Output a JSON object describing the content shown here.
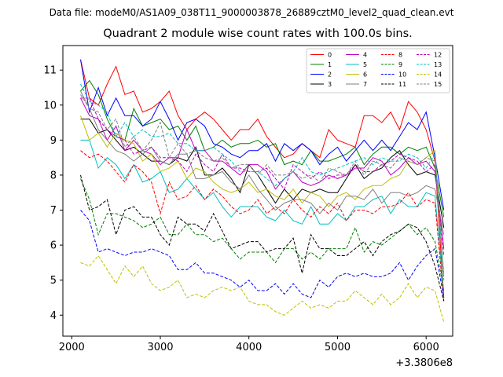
{
  "chart_data": {
    "type": "line",
    "suptitle": "Data file: modeM0/AS1A09_038T11_9000003878_26889cztM0_level2_quad_clean.evt",
    "title": "Quadrant 2 module wise count rates with 100.0s bins.",
    "xlabel": "",
    "ylabel": "",
    "x_offset_label": "+3.3806e8",
    "xlim": [
      1900,
      6300
    ],
    "ylim": [
      3.4,
      11.7
    ],
    "xticks": [
      2000,
      3000,
      4000,
      5000,
      6000
    ],
    "yticks": [
      4,
      5,
      6,
      7,
      8,
      9,
      10,
      11
    ],
    "grid": false,
    "legend_position": "top-right",
    "x": [
      2100,
      2200,
      2300,
      2400,
      2500,
      2600,
      2700,
      2800,
      2900,
      3000,
      3100,
      3200,
      3300,
      3400,
      3500,
      3600,
      3700,
      3800,
      3900,
      4000,
      4100,
      4200,
      4300,
      4400,
      4500,
      4600,
      4700,
      4800,
      4900,
      5000,
      5100,
      5200,
      5300,
      5400,
      5500,
      5600,
      5700,
      5800,
      5900,
      6000,
      6100,
      6200
    ],
    "series": [
      {
        "name": "0",
        "color": "#ff0000",
        "style": "solid",
        "values": [
          11.3,
          10.2,
          10.0,
          10.6,
          11.1,
          10.3,
          10.4,
          9.8,
          9.9,
          10.1,
          10.4,
          9.7,
          9.3,
          9.6,
          9.8,
          9.6,
          9.3,
          9.0,
          9.3,
          9.3,
          9.6,
          9.1,
          8.8,
          8.5,
          8.6,
          8.9,
          8.7,
          8.5,
          9.3,
          9.0,
          8.9,
          8.8,
          9.7,
          9.7,
          9.5,
          9.8,
          9.3,
          10.1,
          9.8,
          9.3,
          8.4,
          4.5
        ]
      },
      {
        "name": "1",
        "color": "#008000",
        "style": "solid",
        "values": [
          10.4,
          10.7,
          10.3,
          9.6,
          9.1,
          9.0,
          9.9,
          9.4,
          9.5,
          9.6,
          9.3,
          9.4,
          9.0,
          9.4,
          8.7,
          8.8,
          9.0,
          8.8,
          8.9,
          8.9,
          9.0,
          8.8,
          8.9,
          8.3,
          8.4,
          8.3,
          8.7,
          8.4,
          8.4,
          8.5,
          8.6,
          8.8,
          8.3,
          8.6,
          8.8,
          8.8,
          8.6,
          8.8,
          8.7,
          8.8,
          8.2,
          6.8
        ]
      },
      {
        "name": "2",
        "color": "#0000ff",
        "style": "solid",
        "values": [
          11.3,
          9.8,
          10.5,
          9.7,
          10.2,
          9.7,
          9.7,
          9.4,
          9.6,
          10.1,
          9.6,
          9.0,
          9.5,
          9.6,
          9.4,
          8.9,
          8.8,
          8.6,
          8.5,
          8.7,
          8.7,
          8.9,
          8.4,
          8.9,
          8.7,
          8.9,
          8.7,
          8.3,
          8.6,
          8.8,
          8.4,
          8.7,
          9.0,
          8.7,
          9.0,
          8.7,
          9.1,
          9.5,
          9.3,
          9.8,
          8.5,
          7.0
        ]
      },
      {
        "name": "3",
        "color": "#000000",
        "style": "solid",
        "values": [
          9.6,
          9.6,
          9.2,
          9.3,
          9.0,
          8.7,
          8.8,
          8.6,
          8.4,
          8.4,
          8.3,
          8.5,
          8.4,
          8.8,
          8.0,
          8.0,
          8.2,
          7.9,
          7.5,
          8.3,
          8.0,
          7.6,
          7.2,
          7.6,
          7.3,
          7.6,
          7.5,
          7.6,
          7.5,
          7.5,
          7.9,
          8.3,
          7.9,
          8.1,
          8.2,
          8.5,
          8.7,
          8.3,
          8.0,
          8.1,
          8.0,
          6.5
        ]
      },
      {
        "name": "4",
        "color": "#c000c0",
        "style": "solid",
        "values": [
          10.2,
          9.7,
          9.6,
          9.0,
          9.4,
          8.7,
          9.0,
          8.7,
          8.6,
          8.3,
          8.5,
          8.5,
          9.3,
          8.7,
          8.7,
          8.4,
          8.4,
          8.2,
          8.0,
          8.3,
          8.3,
          8.1,
          7.6,
          7.9,
          8.1,
          7.8,
          7.7,
          7.8,
          8.0,
          7.9,
          8.0,
          8.2,
          8.2,
          8.5,
          8.4,
          8.0,
          8.2,
          8.5,
          8.3,
          8.4,
          8.1,
          5.9
        ]
      },
      {
        "name": "5",
        "color": "#00bfbf",
        "style": "solid",
        "values": [
          9.0,
          9.0,
          8.2,
          8.5,
          8.3,
          7.9,
          8.3,
          7.8,
          7.9,
          8.1,
          7.5,
          7.6,
          7.9,
          7.6,
          7.3,
          7.5,
          7.1,
          6.8,
          7.1,
          7.1,
          7.1,
          6.8,
          6.7,
          7.0,
          6.7,
          6.6,
          7.1,
          6.6,
          6.6,
          6.9,
          6.7,
          7.1,
          7.1,
          7.3,
          7.4,
          6.9,
          7.3,
          7.1,
          7.1,
          7.5,
          7.4,
          4.6
        ]
      },
      {
        "name": "6",
        "color": "#bfbf00",
        "style": "solid",
        "values": [
          9.7,
          9.0,
          9.2,
          8.8,
          9.2,
          9.0,
          8.9,
          8.4,
          8.6,
          8.1,
          8.2,
          8.4,
          7.9,
          8.2,
          8.1,
          7.8,
          7.6,
          7.5,
          7.6,
          7.8,
          7.5,
          7.6,
          7.4,
          7.3,
          7.6,
          7.2,
          7.5,
          7.4,
          7.1,
          7.4,
          7.5,
          7.3,
          7.6,
          7.7,
          7.7,
          7.9,
          8.0,
          8.4,
          8.3,
          8.5,
          8.7,
          5.1
        ]
      },
      {
        "name": "7",
        "color": "#808080",
        "style": "solid",
        "values": [
          10.4,
          9.9,
          9.3,
          9.0,
          8.7,
          8.6,
          8.4,
          8.6,
          8.8,
          8.4,
          8.3,
          8.6,
          8.6,
          7.9,
          7.9,
          8.0,
          8.1,
          7.8,
          7.6,
          8.0,
          7.6,
          7.3,
          7.0,
          7.2,
          7.3,
          7.3,
          7.2,
          6.9,
          7.2,
          7.0,
          7.4,
          7.4,
          7.3,
          7.6,
          7.2,
          7.5,
          7.5,
          7.4,
          7.5,
          7.7,
          7.6,
          6.3
        ]
      },
      {
        "name": "8",
        "color": "#ff0000",
        "style": "dashed",
        "values": [
          8.7,
          8.5,
          8.6,
          8.4,
          8.1,
          7.8,
          8.3,
          8.1,
          7.8,
          6.9,
          7.8,
          7.3,
          7.4,
          7.7,
          7.3,
          7.6,
          7.4,
          7.1,
          6.9,
          7.0,
          7.3,
          6.9,
          7.1,
          6.9,
          7.3,
          7.0,
          6.8,
          7.1,
          6.9,
          7.2,
          6.7,
          7.0,
          7.0,
          6.9,
          7.1,
          7.1,
          7.2,
          7.5,
          7.1,
          7.3,
          7.2,
          4.4
        ]
      },
      {
        "name": "9",
        "color": "#008000",
        "style": "dashed",
        "values": [
          7.9,
          7.3,
          6.3,
          6.9,
          6.9,
          6.8,
          6.7,
          6.5,
          6.6,
          6.8,
          6.3,
          6.3,
          6.6,
          6.3,
          6.3,
          6.1,
          6.2,
          5.9,
          5.6,
          5.8,
          5.8,
          5.8,
          5.5,
          5.9,
          5.9,
          5.6,
          5.8,
          5.6,
          5.9,
          5.9,
          5.9,
          6.5,
          5.8,
          6.1,
          6.0,
          6.2,
          6.4,
          6.6,
          6.3,
          6.5,
          6.1,
          4.7
        ]
      },
      {
        "name": "10",
        "color": "#0000ff",
        "style": "dashed",
        "values": [
          7.0,
          6.7,
          5.8,
          5.9,
          5.8,
          5.7,
          5.8,
          5.8,
          5.9,
          5.8,
          5.7,
          5.3,
          5.3,
          5.5,
          5.2,
          5.2,
          5.1,
          5.0,
          4.8,
          5.0,
          4.7,
          4.7,
          4.9,
          4.6,
          4.9,
          4.6,
          4.5,
          5.0,
          4.8,
          5.1,
          5.2,
          5.1,
          5.2,
          5.1,
          5.1,
          5.2,
          5.5,
          5.0,
          5.4,
          5.7,
          5.9,
          4.5
        ]
      },
      {
        "name": "11",
        "color": "#000000",
        "style": "dashed",
        "values": [
          8.0,
          7.0,
          7.1,
          7.3,
          6.3,
          7.0,
          7.1,
          6.8,
          6.8,
          6.3,
          6.0,
          6.8,
          6.6,
          6.6,
          6.4,
          6.9,
          6.4,
          5.9,
          6.0,
          6.1,
          6.1,
          5.8,
          5.9,
          5.9,
          6.2,
          5.2,
          6.3,
          5.9,
          5.9,
          5.7,
          5.7,
          5.9,
          6.1,
          5.7,
          6.1,
          6.3,
          6.4,
          6.6,
          6.5,
          6.1,
          5.4,
          4.4
        ]
      },
      {
        "name": "12",
        "color": "#c000c0",
        "style": "dashed",
        "values": [
          10.2,
          10.2,
          9.6,
          9.3,
          9.1,
          9.0,
          8.6,
          8.7,
          8.8,
          8.5,
          8.5,
          8.4,
          8.1,
          8.6,
          8.3,
          8.1,
          8.6,
          8.2,
          8.2,
          8.1,
          8.1,
          8.2,
          7.9,
          7.6,
          8.3,
          8.1,
          7.9,
          8.1,
          7.9,
          8.0,
          8.0,
          8.3,
          8.1,
          8.1,
          8.3,
          8.4,
          8.6,
          8.5,
          8.4,
          8.1,
          8.3,
          5.7
        ]
      },
      {
        "name": "13",
        "color": "#00bfbf",
        "style": "dashed",
        "values": [
          10.6,
          10.1,
          10.0,
          9.8,
          9.1,
          9.5,
          9.1,
          9.3,
          9.1,
          9.1,
          9.2,
          8.9,
          8.9,
          8.7,
          8.7,
          8.8,
          8.6,
          8.4,
          8.1,
          8.1,
          8.1,
          7.9,
          7.7,
          7.9,
          8.1,
          8.5,
          8.1,
          8.0,
          8.1,
          8.2,
          8.3,
          8.4,
          8.5,
          8.3,
          8.5,
          8.4,
          8.4,
          8.6,
          8.5,
          8.2,
          8.6,
          5.0
        ]
      },
      {
        "name": "14",
        "color": "#bfbf00",
        "style": "dashed",
        "values": [
          5.5,
          5.4,
          5.7,
          5.3,
          4.9,
          5.4,
          5.1,
          5.4,
          4.9,
          4.7,
          4.8,
          5.0,
          4.5,
          4.6,
          4.5,
          4.7,
          4.8,
          4.7,
          4.8,
          4.4,
          4.3,
          4.3,
          4.1,
          4.0,
          4.2,
          4.4,
          4.2,
          4.3,
          4.2,
          4.4,
          4.4,
          4.7,
          4.5,
          4.3,
          4.6,
          4.3,
          4.5,
          4.9,
          4.5,
          4.8,
          4.7,
          3.8
        ]
      },
      {
        "name": "15",
        "color": "#808080",
        "style": "dashed",
        "values": [
          10.3,
          9.9,
          9.8,
          9.3,
          9.6,
          8.8,
          9.1,
          8.7,
          9.0,
          9.5,
          8.5,
          8.9,
          8.6,
          8.7,
          8.5,
          8.4,
          8.5,
          8.2,
          8.3,
          8.3,
          8.0,
          8.3,
          8.0,
          8.0,
          8.1,
          7.9,
          8.0,
          7.8,
          8.2,
          8.1,
          8.0,
          8.4,
          8.0,
          8.4,
          8.3,
          8.2,
          8.5,
          8.4,
          8.3,
          8.5,
          8.4,
          5.2
        ]
      }
    ]
  }
}
